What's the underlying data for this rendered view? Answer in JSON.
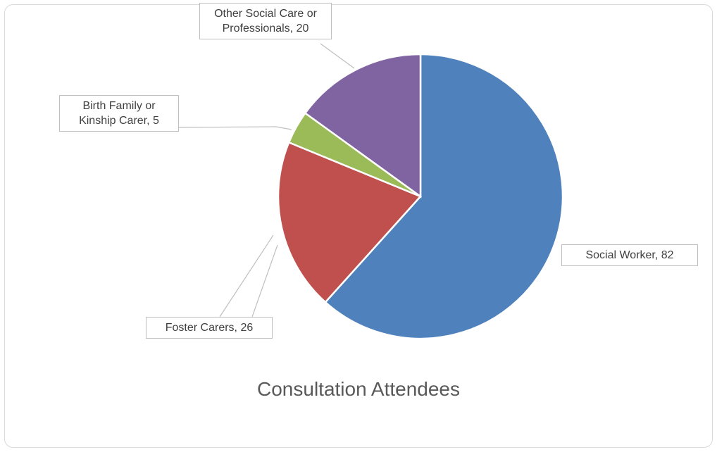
{
  "chart_data": {
    "type": "pie",
    "title": "Consultation Attendees",
    "categories": [
      "Social Worker",
      "Foster Carers",
      "Birth Family or Kinship Carer",
      "Other Social Care or Professionals"
    ],
    "values": [
      82,
      26,
      5,
      20
    ],
    "colors": [
      "#4f81bd",
      "#c0504d",
      "#9bbb59",
      "#8064a2"
    ]
  }
}
